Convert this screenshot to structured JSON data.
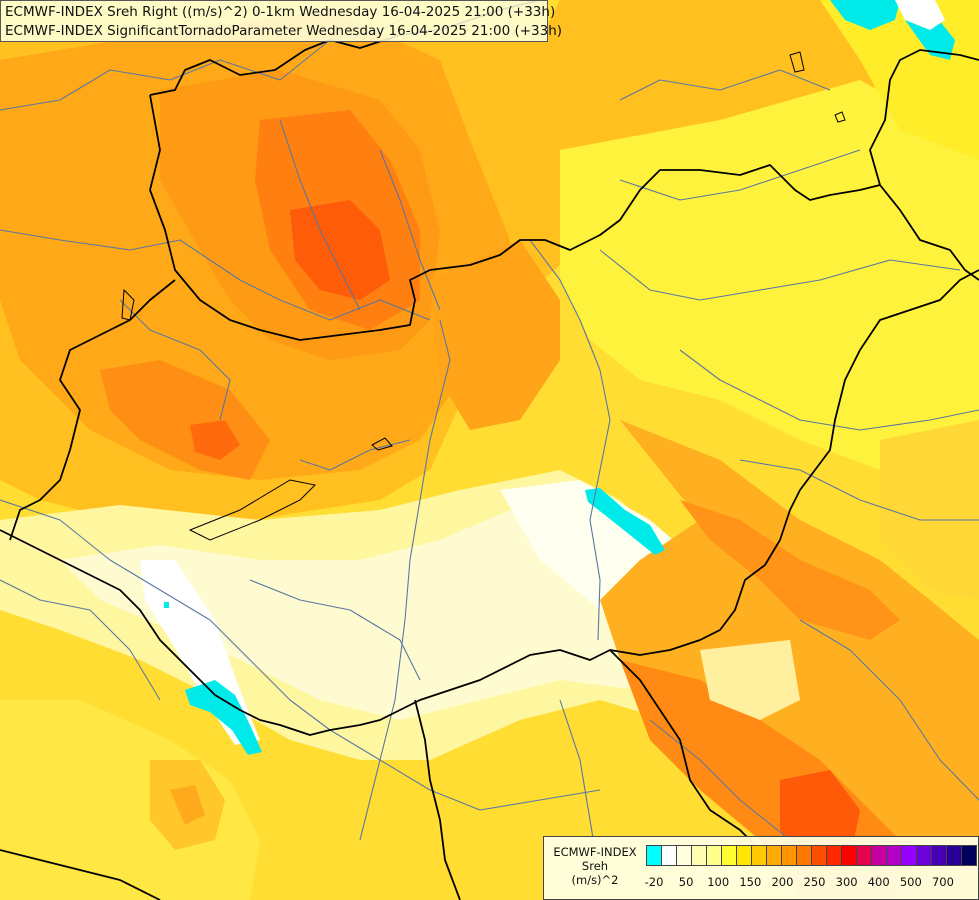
{
  "title": {
    "line1": "ECMWF-INDEX Sreh Right ((m/s)^2) 0-1km Wednesday 16-04-2025 21:00 (+33h)",
    "line2": "ECMWF-INDEX SignificantTornadoParameter Wednesday 16-04-2025 21:00 (+33h)"
  },
  "legend": {
    "title_line1": "ECMWF-INDEX",
    "title_line2": "Sreh",
    "title_line3": "(m/s)^2",
    "swatch_colors": [
      "#00ffff",
      "#ffffff",
      "#ffffe0",
      "#ffffb4",
      "#ffff8c",
      "#ffff32",
      "#ffe600",
      "#ffc800",
      "#ffaa00",
      "#ff9600",
      "#ff7800",
      "#ff5000",
      "#ff2800",
      "#ff0000",
      "#e60050",
      "#c800a0",
      "#b400c8",
      "#9600ff",
      "#6e00dc",
      "#4600b4",
      "#280096",
      "#00005a"
    ],
    "ticks": [
      {
        "label": "-20",
        "index": 0.5
      },
      {
        "label": "50",
        "index": 2.5
      },
      {
        "label": "100",
        "index": 4.5
      },
      {
        "label": "150",
        "index": 6.5
      },
      {
        "label": "200",
        "index": 8.5
      },
      {
        "label": "250",
        "index": 10.5
      },
      {
        "label": "300",
        "index": 12.5
      },
      {
        "label": "400",
        "index": 14.5
      },
      {
        "label": "500",
        "index": 16.5
      },
      {
        "label": "700",
        "index": 18.5
      }
    ]
  },
  "colors": {
    "background_yellow": "#ffe34d",
    "light_yellow": "#fff27a",
    "pale_yellow": "#fffcc0",
    "cream": "#fffde8",
    "gold": "#ffc828",
    "orange_light": "#ffb020",
    "orange": "#ff9a18",
    "orange_dark": "#ff7a10",
    "red_orange": "#ff5a08",
    "cyan": "#00eeee",
    "border_line": "#000000",
    "river_line": "#5a78a0"
  }
}
